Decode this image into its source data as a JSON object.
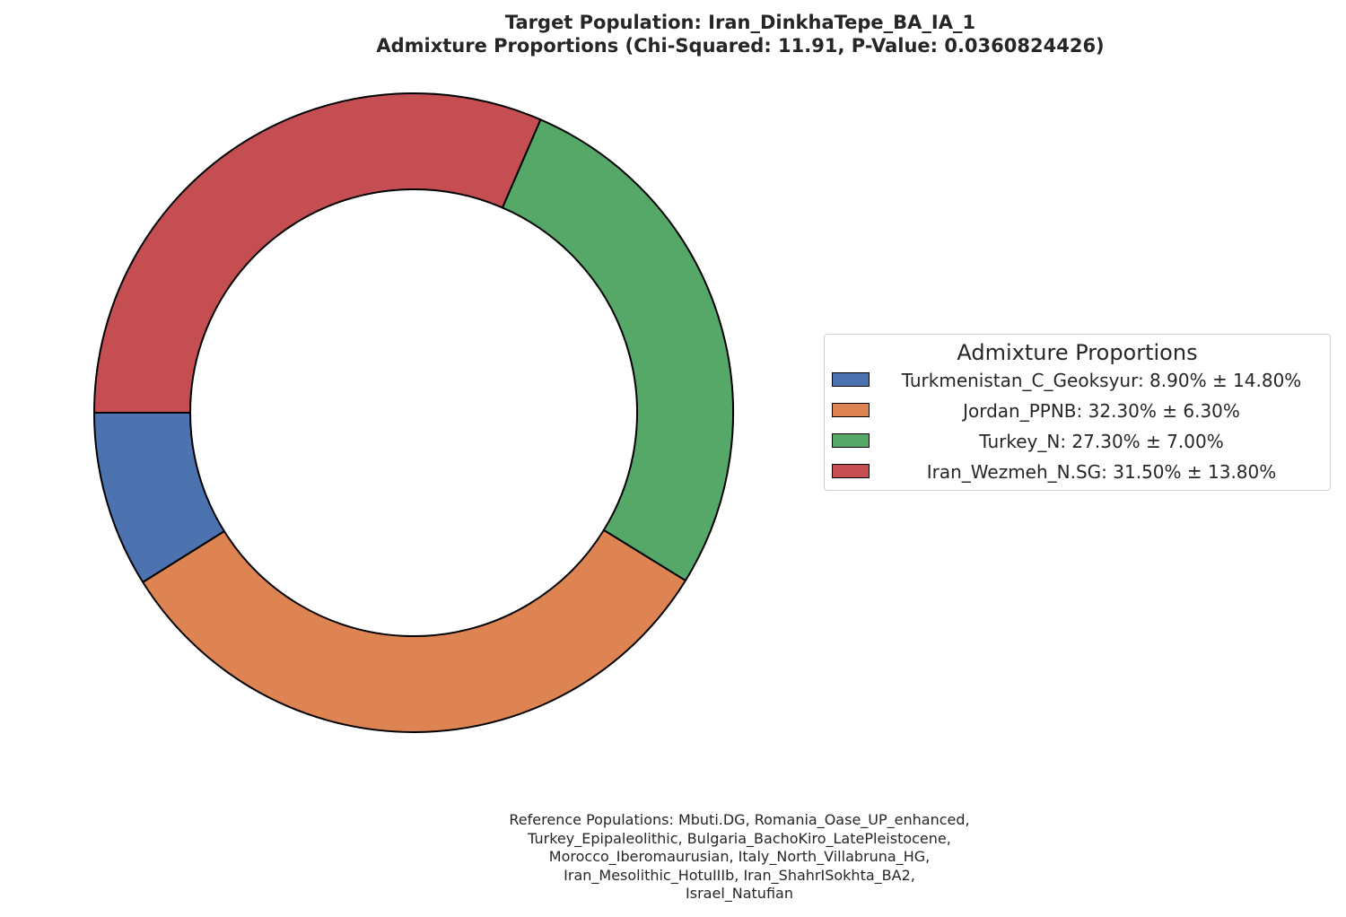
{
  "chart_data": {
    "type": "pie",
    "variant": "donut",
    "title": "Target Population: Iran_DinkhaTepe_BA_IA_1",
    "subtitle": "Admixture Proportions (Chi-Squared: 11.91, P-Value: 0.0360824426)",
    "start_angle_deg": 180,
    "direction": "counterclockwise",
    "slices": [
      {
        "label": "Turkmenistan_C_Geoksyur",
        "value": 8.9,
        "error": 14.8,
        "color": "#4c72b0"
      },
      {
        "label": "Jordan_PPNB",
        "value": 32.3,
        "error": 6.3,
        "color": "#dd8452"
      },
      {
        "label": "Turkey_N",
        "value": 27.3,
        "error": 7.0,
        "color": "#55a868"
      },
      {
        "label": "Iran_Wezmeh_N.SG",
        "value": 31.5,
        "error": 13.8,
        "color": "#c44e52"
      }
    ],
    "legend": {
      "title": "Admixture Proportions",
      "placement": "right",
      "entries": [
        "Turkmenistan_C_Geoksyur: 8.90% ± 14.80%",
        "Jordan_PPNB: 32.30% ± 6.30%",
        "Turkey_N: 27.30% ± 7.00%",
        "Iran_Wezmeh_N.SG: 31.50% ± 13.80%"
      ]
    },
    "footnote_lines": [
      "Reference Populations: Mbuti.DG, Romania_Oase_UP_enhanced,",
      "Turkey_Epipaleolithic, Bulgaria_BachoKiro_LatePleistocene,",
      "Morocco_Iberomaurusian, Italy_North_Villabruna_HG,",
      "Iran_Mesolithic_HotuIIIb, Iran_ShahrISokhta_BA2,",
      "Israel_Natufian"
    ]
  }
}
